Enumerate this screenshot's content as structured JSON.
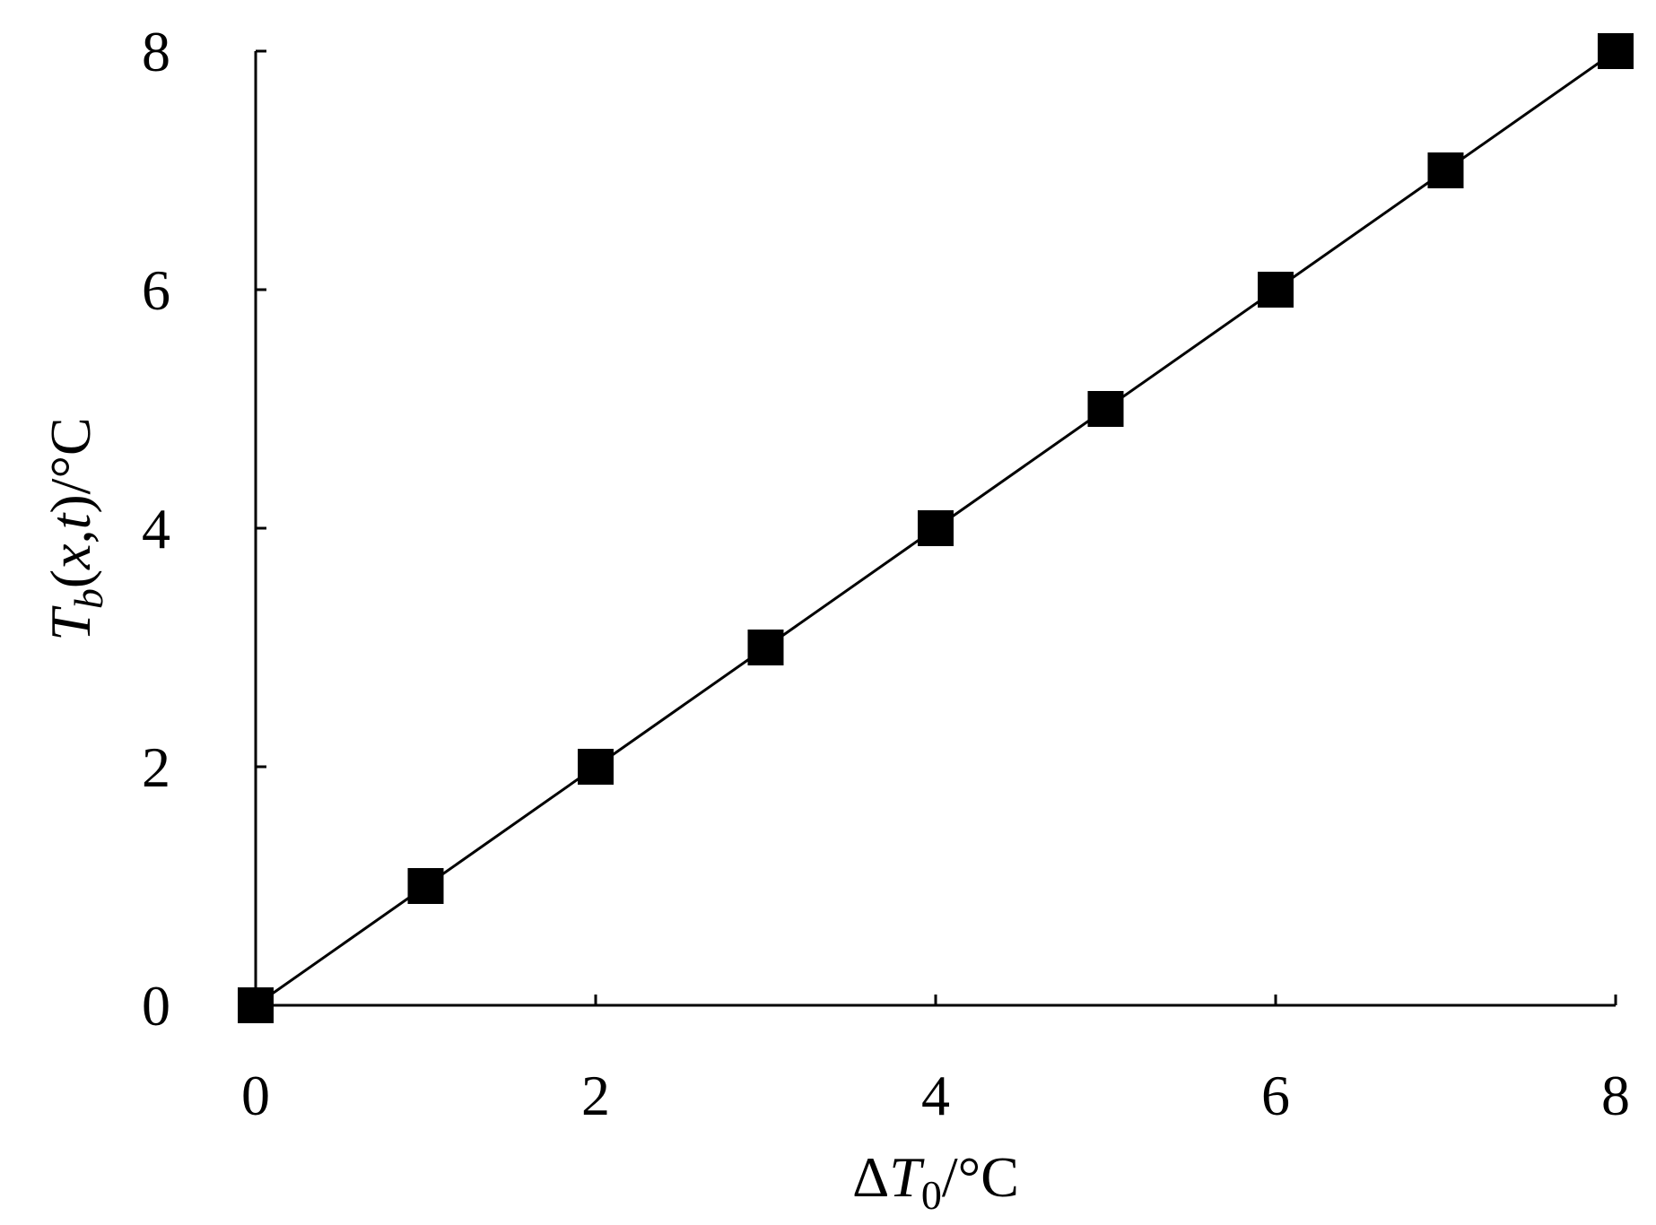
{
  "chart_data": {
    "type": "line",
    "x": [
      0,
      1,
      2,
      3,
      4,
      5,
      6,
      7,
      8
    ],
    "series": [
      {
        "values": [
          0,
          1,
          2,
          3,
          4,
          5,
          6,
          7,
          8
        ],
        "marker": "square",
        "color": "#000000"
      }
    ],
    "xlim": [
      0,
      8
    ],
    "ylim": [
      0,
      8
    ],
    "x_ticks": [
      0,
      2,
      4,
      6,
      8
    ],
    "y_ticks": [
      0,
      2,
      4,
      6,
      8
    ],
    "x_tick_labels": [
      "0",
      "2",
      "4",
      "6",
      "8"
    ],
    "y_tick_labels": [
      "0",
      "2",
      "4",
      "6",
      "8"
    ],
    "xlabel": {
      "prefix": "Δ",
      "var": "T",
      "sub": "0",
      "unit": "/°C"
    },
    "ylabel": {
      "var": "T",
      "sub": "b",
      "args_open": "(",
      "arg1": "x",
      "comma": ",",
      "arg2": "t",
      "args_close": ")",
      "unit": "/°C"
    },
    "grid": false,
    "legend": false
  }
}
